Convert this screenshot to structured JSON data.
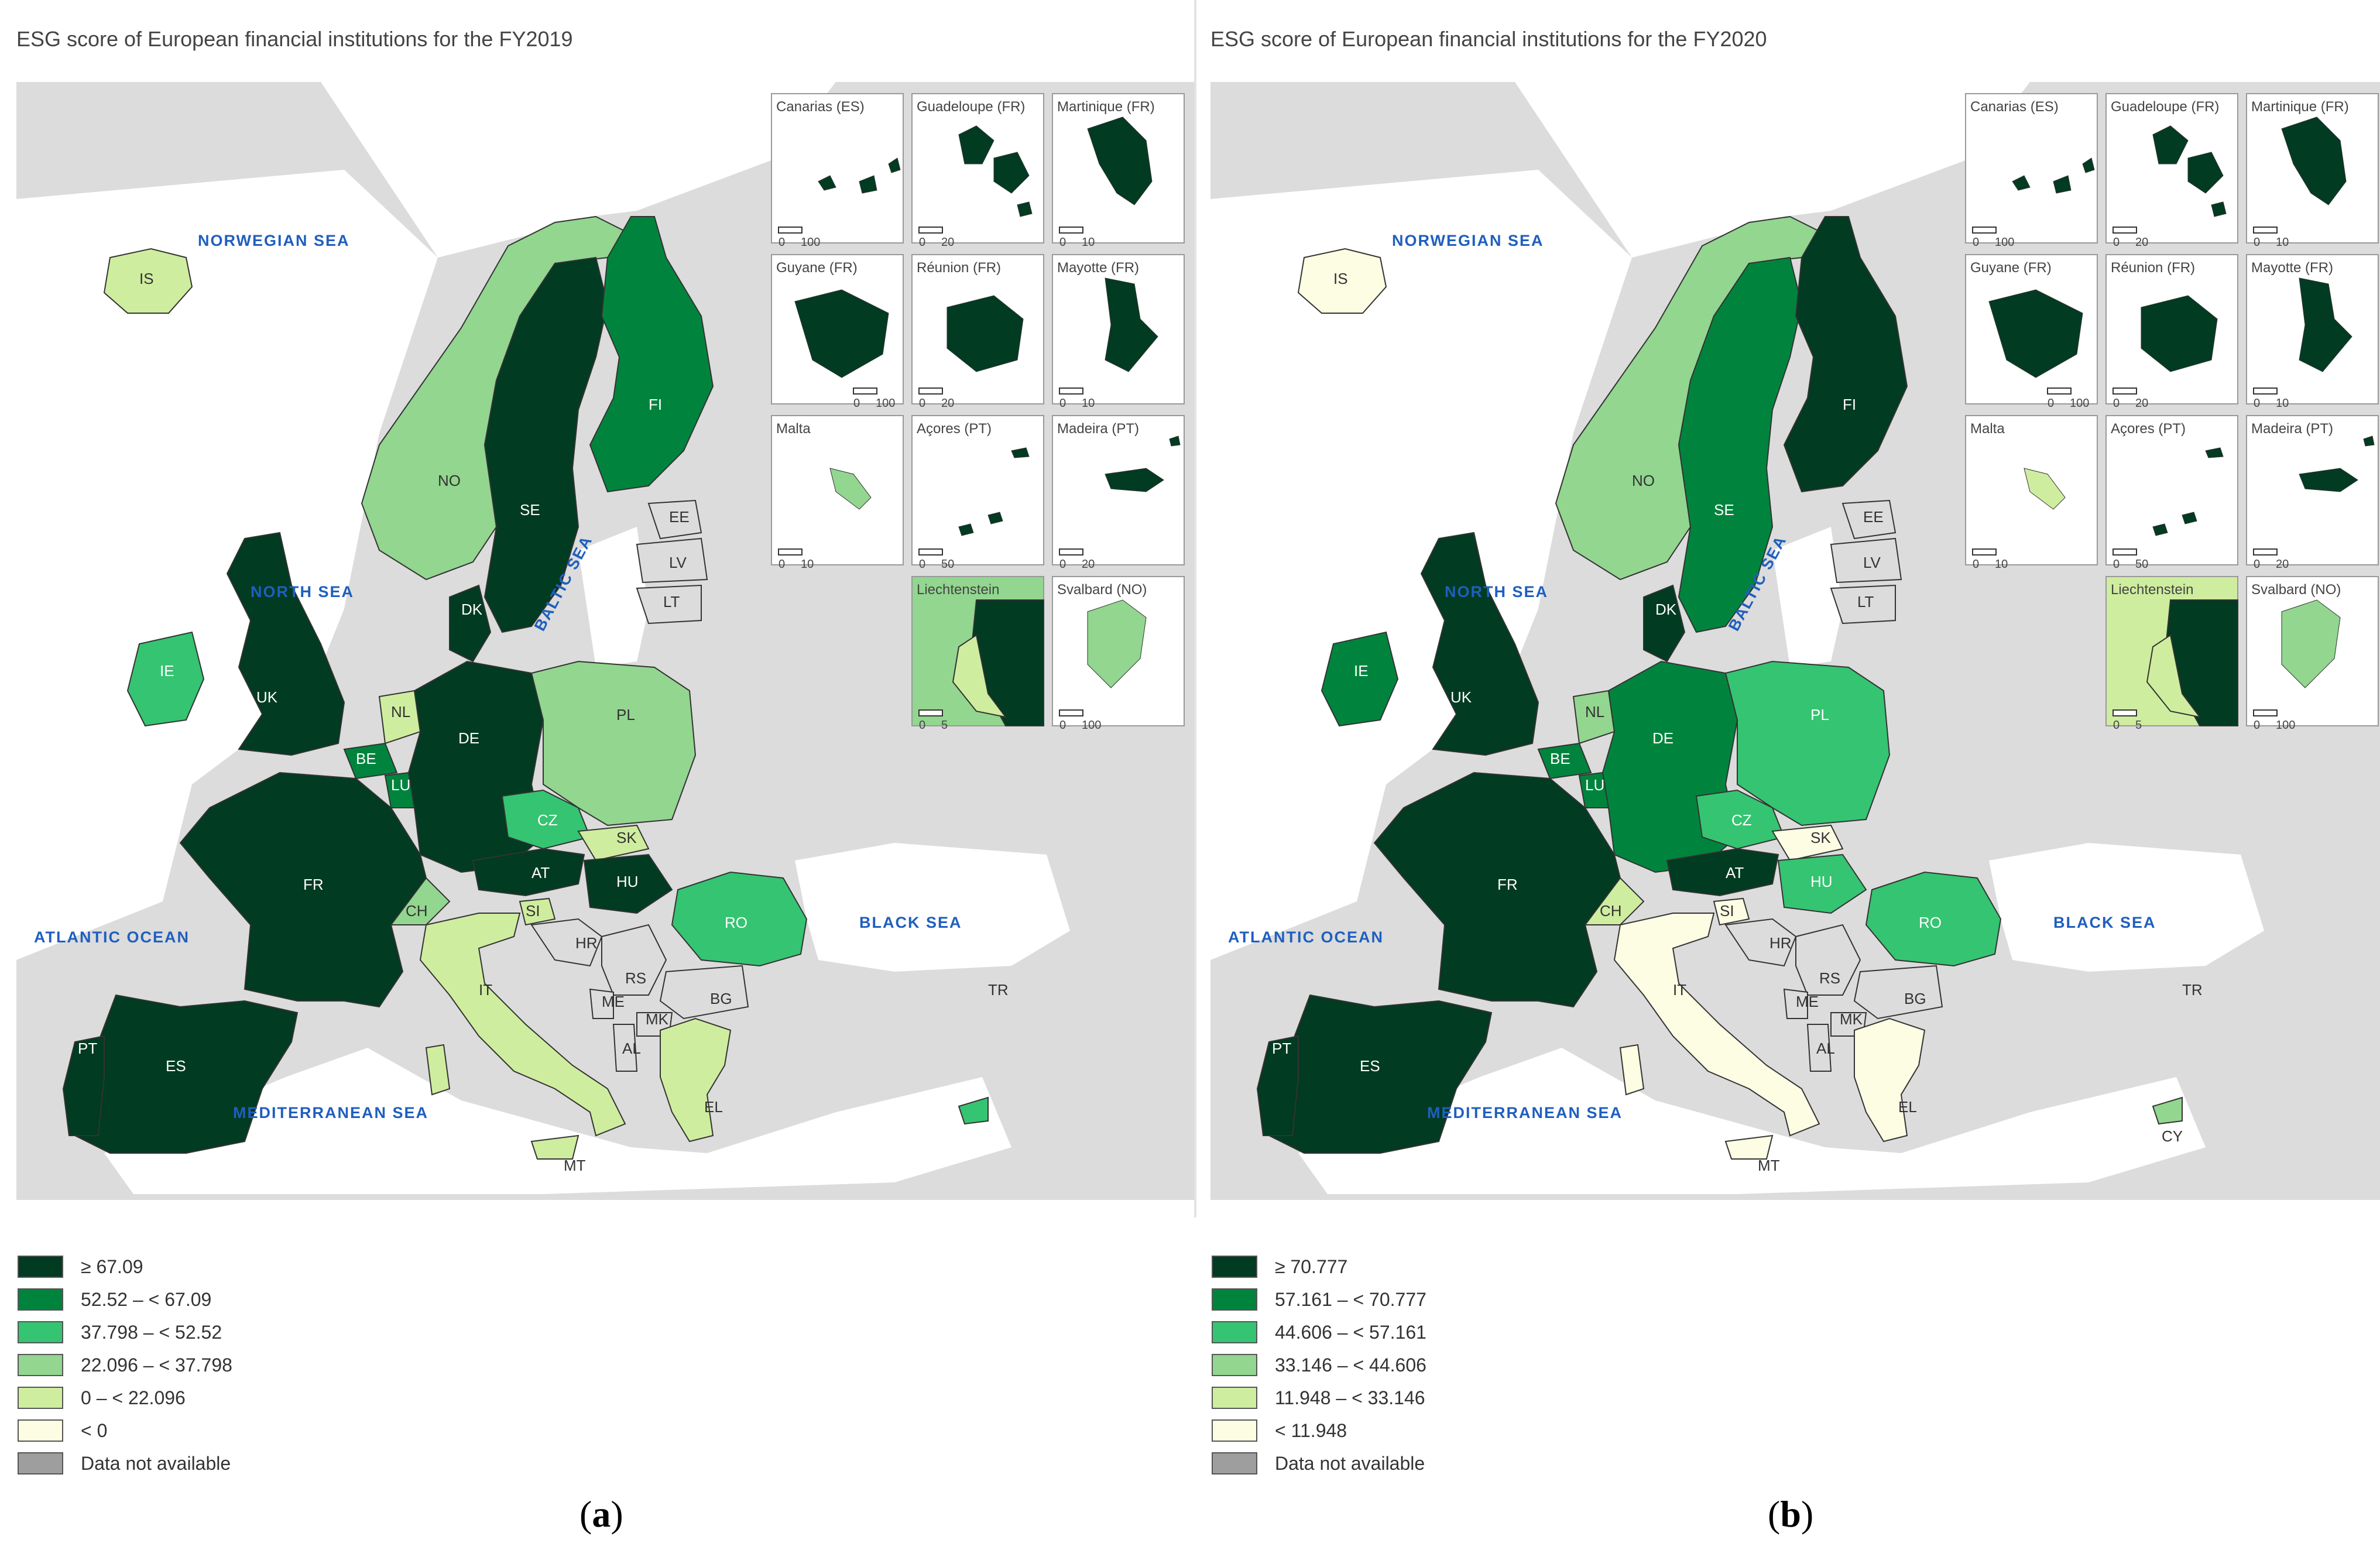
{
  "panels": [
    {
      "title": "ESG score of European financial institutions for the FY2019",
      "caption_letter": "a",
      "colors": {
        "c1": "#003b22",
        "c2": "#00843d",
        "c3": "#35c471",
        "c4": "#92d68f",
        "c5": "#cfed9f",
        "c6": "#fdfde4",
        "na": "#9e9e9e"
      },
      "legend": [
        {
          "label": "≥ 67.09",
          "color": "#003b22"
        },
        {
          "label": "52.52 – < 67.09",
          "color": "#00843d"
        },
        {
          "label": "37.798 – < 52.52",
          "color": "#35c471"
        },
        {
          "label": "22.096 – < 37.798",
          "color": "#92d68f"
        },
        {
          "label": "0 – < 22.096",
          "color": "#cfed9f"
        },
        {
          "label": "< 0",
          "color": "#fdfde4"
        },
        {
          "label": "Data not available",
          "color": "#9e9e9e"
        }
      ],
      "country_class": {
        "IS": "c5",
        "NO": "c4",
        "SE": "c1",
        "FI": "c2",
        "DK": "c1",
        "UK": "c1",
        "IE": "c3",
        "NL": "c5",
        "BE": "c2",
        "LU": "c2",
        "DE": "c1",
        "PL": "c4",
        "CZ": "c3",
        "SK": "c5",
        "AT": "c1",
        "HU": "c1",
        "CH": "c4",
        "SI": "c5",
        "FR": "c1",
        "ES": "c1",
        "PT": "c1",
        "IT": "c5",
        "RO": "c3",
        "EL": "c5",
        "CY": "c3"
      },
      "insets": [
        {
          "name": "Canarias (ES)",
          "scale": [
            "0",
            "100"
          ],
          "cls": "c1"
        },
        {
          "name": "Guadeloupe (FR)",
          "scale": [
            "0",
            "20"
          ],
          "cls": "c1"
        },
        {
          "name": "Martinique (FR)",
          "scale": [
            "0",
            "10"
          ],
          "cls": "c1"
        },
        {
          "name": "Guyane (FR)",
          "scale": [
            "0",
            "100"
          ],
          "cls": "c1"
        },
        {
          "name": "Réunion (FR)",
          "scale": [
            "0",
            "20"
          ],
          "cls": "c1"
        },
        {
          "name": "Mayotte (FR)",
          "scale": [
            "0",
            "10"
          ],
          "cls": "c1"
        },
        {
          "name": "Malta",
          "scale": [
            "0",
            "10"
          ],
          "cls": "c4"
        },
        {
          "name": "Açores (PT)",
          "scale": [
            "0",
            "50"
          ],
          "cls": "c1"
        },
        {
          "name": "Madeira (PT)",
          "scale": [
            "0",
            "20"
          ],
          "cls": "c1"
        },
        {
          "name": "Liechtenstein",
          "scale": [
            "0",
            "5"
          ],
          "cls": "c1",
          "bg": "c4",
          "inner": "c5"
        },
        {
          "name": "Svalbard (NO)",
          "scale": [
            "0",
            "100"
          ],
          "cls": "c4"
        }
      ]
    },
    {
      "title": "ESG score of European financial institutions for the FY2020",
      "caption_letter": "b",
      "colors": {
        "c1": "#003b22",
        "c2": "#00843d",
        "c3": "#35c471",
        "c4": "#92d68f",
        "c5": "#cfed9f",
        "c6": "#fdfde4",
        "na": "#9e9e9e"
      },
      "legend": [
        {
          "label": "≥ 70.777",
          "color": "#003b22"
        },
        {
          "label": "57.161 – < 70.777",
          "color": "#00843d"
        },
        {
          "label": "44.606 – < 57.161",
          "color": "#35c471"
        },
        {
          "label": "33.146 – < 44.606",
          "color": "#92d68f"
        },
        {
          "label": "11.948 – < 33.146",
          "color": "#cfed9f"
        },
        {
          "label": "< 11.948",
          "color": "#fdfde4"
        },
        {
          "label": "Data not available",
          "color": "#9e9e9e"
        }
      ],
      "country_class": {
        "IS": "c6",
        "NO": "c4",
        "SE": "c2",
        "FI": "c1",
        "DK": "c1",
        "UK": "c1",
        "IE": "c2",
        "NL": "c4",
        "BE": "c2",
        "LU": "c2",
        "DE": "c2",
        "PL": "c3",
        "CZ": "c3",
        "SK": "c6",
        "AT": "c1",
        "HU": "c3",
        "CH": "c5",
        "SI": "c6",
        "FR": "c1",
        "ES": "c1",
        "PT": "c1",
        "IT": "c6",
        "RO": "c3",
        "EL": "c6",
        "CY": "c4"
      },
      "insets": [
        {
          "name": "Canarias (ES)",
          "scale": [
            "0",
            "100"
          ],
          "cls": "c1"
        },
        {
          "name": "Guadeloupe (FR)",
          "scale": [
            "0",
            "20"
          ],
          "cls": "c1"
        },
        {
          "name": "Martinique (FR)",
          "scale": [
            "0",
            "10"
          ],
          "cls": "c1"
        },
        {
          "name": "Guyane (FR)",
          "scale": [
            "0",
            "100"
          ],
          "cls": "c1"
        },
        {
          "name": "Réunion (FR)",
          "scale": [
            "0",
            "20"
          ],
          "cls": "c1"
        },
        {
          "name": "Mayotte (FR)",
          "scale": [
            "0",
            "10"
          ],
          "cls": "c1"
        },
        {
          "name": "Malta",
          "scale": [
            "0",
            "10"
          ],
          "cls": "c5"
        },
        {
          "name": "Açores (PT)",
          "scale": [
            "0",
            "50"
          ],
          "cls": "c1"
        },
        {
          "name": "Madeira (PT)",
          "scale": [
            "0",
            "20"
          ],
          "cls": "c1"
        },
        {
          "name": "Liechtenstein",
          "scale": [
            "0",
            "5"
          ],
          "cls": "c1",
          "bg": "c5",
          "inner": "c5"
        },
        {
          "name": "Svalbard (NO)",
          "scale": [
            "0",
            "100"
          ],
          "cls": "c4"
        }
      ]
    }
  ],
  "seas": {
    "norwegian": "NORWEGIAN SEA",
    "north": "NORTH SEA",
    "baltic": "BALTIC SEA",
    "atlantic": "ATLANTIC OCEAN",
    "black": "BLACK SEA",
    "mediterranean": "MEDITERRANEAN SEA"
  },
  "country_codes": [
    "IS",
    "NO",
    "SE",
    "FI",
    "EE",
    "LV",
    "LT",
    "DK",
    "UK",
    "IE",
    "NL",
    "BE",
    "LU",
    "DE",
    "PL",
    "CZ",
    "SK",
    "AT",
    "HU",
    "CH",
    "SI",
    "FR",
    "ES",
    "PT",
    "IT",
    "HR",
    "RS",
    "BG",
    "RO",
    "ME",
    "MK",
    "AL",
    "EL",
    "TR",
    "CY",
    "MT"
  ]
}
